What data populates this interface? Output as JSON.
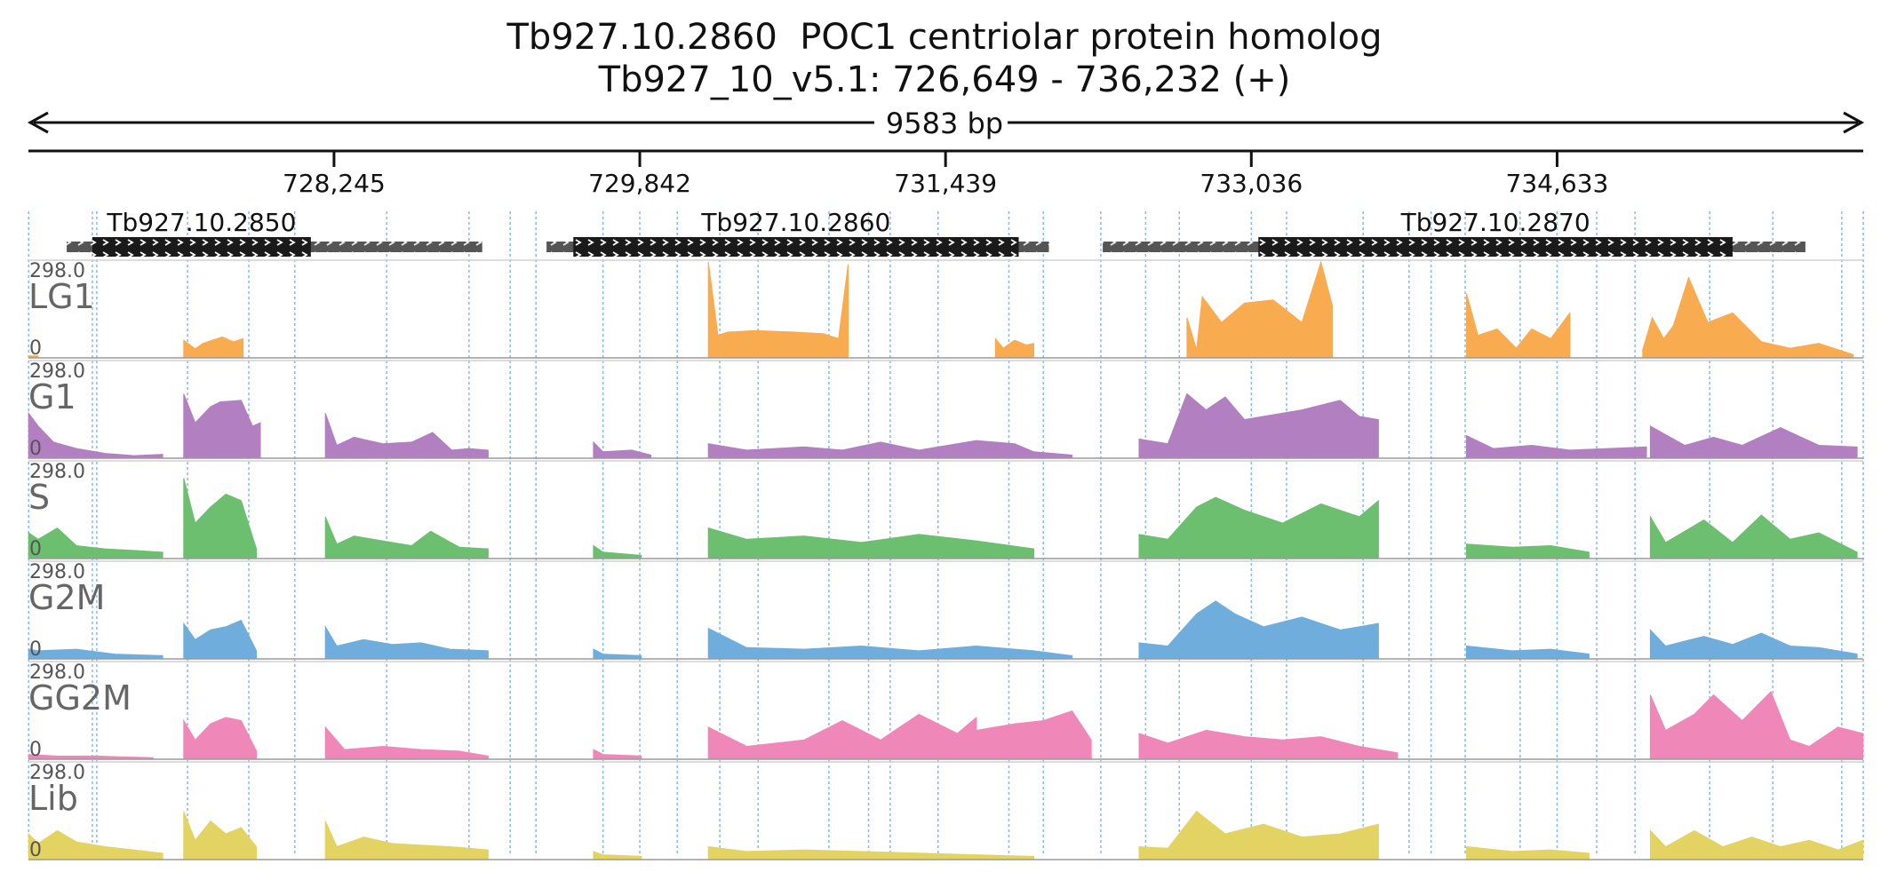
{
  "chart_data": {
    "type": "area",
    "title": "Tb927.10.2860  POC1 centriolar protein homolog",
    "subtitle": "Tb927_10_v5.1: 726,649 - 736,232 (+)",
    "span_label": "9583 bp",
    "region": {
      "start": 726649,
      "end": 736232
    },
    "ticks": [
      {
        "value": 728245,
        "label": "728,245"
      },
      {
        "value": 729842,
        "label": "729,842"
      },
      {
        "value": 731439,
        "label": "731,439"
      },
      {
        "value": 733036,
        "label": "733,036"
      },
      {
        "value": 734633,
        "label": "734,633"
      }
    ],
    "gridlines": [
      726650,
      726983,
      727006,
      727480,
      727800,
      728040,
      728520,
      728950,
      729165,
      729300,
      729650,
      729842,
      730038,
      730260,
      730460,
      730830,
      731037,
      731150,
      731400,
      731770,
      731950,
      732250,
      732484,
      732660,
      733036,
      733220,
      733620,
      733860,
      733975,
      734153,
      734440,
      734633,
      734840,
      735040,
      735430,
      735760,
      736120,
      736232
    ],
    "genes": [
      {
        "name": "Tb927.10.2850",
        "utr_start": 726849,
        "utr_end": 729019,
        "cds_start": 726983,
        "cds_end": 728124
      },
      {
        "name": "Tb927.10.2860",
        "utr_start": 729355,
        "utr_end": 731979,
        "cds_start": 729495,
        "cds_end": 731821
      },
      {
        "name": "Tb927.10.2870",
        "utr_start": 732260,
        "utr_end": 735930,
        "cds_start": 733073,
        "cds_end": 735550
      }
    ],
    "ylim": [
      0,
      298.0
    ],
    "ymax_label": "298.0",
    "ymin_label": "0",
    "series": [
      {
        "name": "LG1",
        "color": "#f9ab4f",
        "segments": [
          {
            "x": [
              726650,
              726700
            ],
            "y": [
              6,
              6
            ]
          },
          {
            "x": [
              727460,
              727520,
              727560,
              727660,
              727720,
              727770
            ],
            "y": [
              55,
              28,
              45,
              65,
              50,
              60
            ]
          },
          {
            "x": [
              730200,
              730250,
              730300,
              730450,
              730650,
              730800,
              730880,
              730930
            ],
            "y": [
              298,
              70,
              80,
              85,
              80,
              75,
              60,
              290
            ]
          },
          {
            "x": [
              731700,
              731740,
              731800,
              731860,
              731900
            ],
            "y": [
              60,
              30,
              55,
              40,
              45
            ]
          },
          {
            "x": [
              732700,
              732750,
              732780,
              732880,
              733000,
              733150,
              733300,
              733400,
              733460
            ],
            "y": [
              125,
              25,
              190,
              110,
              170,
              180,
              110,
              298,
              160
            ]
          },
          {
            "x": [
              734160,
              734220,
              734320,
              734420,
              734500,
              734600,
              734700
            ],
            "y": [
              200,
              70,
              90,
              30,
              90,
              60,
              140
            ]
          },
          {
            "x": [
              735080,
              735130,
              735190,
              735240,
              735320,
              735420,
              735550,
              735700,
              735850,
              736000,
              736180
            ],
            "y": [
              25,
              125,
              60,
              100,
              250,
              110,
              140,
              50,
              30,
              45,
              10
            ]
          }
        ]
      },
      {
        "name": "G1",
        "color": "#b27fc0",
        "segments": [
          {
            "x": [
              726650,
              726700,
              726780,
              726900,
              727050,
              727200,
              727350
            ],
            "y": [
              140,
              100,
              50,
              30,
              15,
              8,
              12
            ]
          },
          {
            "x": [
              727460,
              727520,
              727600,
              727650,
              727760,
              727820,
              727860
            ],
            "y": [
              200,
              110,
              160,
              175,
              180,
              100,
              110
            ]
          },
          {
            "x": [
              728200,
              728260,
              728350,
              728500,
              728650,
              728760,
              728860,
              728950,
              729050
            ],
            "y": [
              140,
              40,
              65,
              45,
              50,
              80,
              25,
              30,
              25
            ]
          },
          {
            "x": [
              729600,
              729650,
              729800,
              729900
            ],
            "y": [
              50,
              20,
              25,
              10
            ]
          },
          {
            "x": [
              730200,
              730400,
              730700,
              730900,
              731100,
              731300,
              731600,
              731800,
              731900,
              732100
            ],
            "y": [
              45,
              25,
              35,
              25,
              50,
              25,
              55,
              45,
              20,
              10
            ]
          },
          {
            "x": [
              732450,
              732600,
              732700,
              732800,
              732900,
              733000,
              733300,
              733500,
              733600,
              733700
            ],
            "y": [
              60,
              45,
              200,
              150,
              190,
              120,
              150,
              180,
              130,
              120
            ]
          },
          {
            "x": [
              734160,
              734300,
              734500,
              734700,
              734900,
              735100
            ],
            "y": [
              70,
              30,
              40,
              25,
              30,
              35
            ]
          },
          {
            "x": [
              735120,
              735300,
              735450,
              735600,
              735800,
              736000,
              736200
            ],
            "y": [
              100,
              40,
              65,
              40,
              95,
              40,
              35
            ]
          }
        ]
      },
      {
        "name": "S",
        "color": "#6cbf6e",
        "segments": [
          {
            "x": [
              726650,
              726700,
              726800,
              726900,
              727050,
              727200,
              727350
            ],
            "y": [
              80,
              60,
              95,
              40,
              30,
              25,
              20
            ]
          },
          {
            "x": [
              727460,
              727520,
              727600,
              727680,
              727760,
              727840
            ],
            "y": [
              250,
              110,
              160,
              200,
              180,
              30
            ]
          },
          {
            "x": [
              728200,
              728260,
              728350,
              728500,
              728650,
              728750,
              728900,
              729050
            ],
            "y": [
              130,
              45,
              70,
              55,
              40,
              85,
              35,
              30
            ]
          },
          {
            "x": [
              729600,
              729650,
              729850
            ],
            "y": [
              40,
              20,
              10
            ]
          },
          {
            "x": [
              730200,
              730400,
              730700,
              731000,
              731300,
              731600,
              731900
            ],
            "y": [
              95,
              60,
              70,
              50,
              75,
              55,
              30
            ]
          },
          {
            "x": [
              732450,
              732600,
              732750,
              732850,
              733000,
              733200,
              733400,
              733600,
              733700
            ],
            "y": [
              75,
              60,
              160,
              190,
              150,
              110,
              170,
              130,
              180
            ]
          },
          {
            "x": [
              734160,
              734400,
              734600,
              734800
            ],
            "y": [
              45,
              35,
              40,
              20
            ]
          },
          {
            "x": [
              735120,
              735200,
              735400,
              735550,
              735700,
              735850,
              736000,
              736200
            ],
            "y": [
              130,
              50,
              120,
              50,
              135,
              60,
              80,
              20
            ]
          }
        ]
      },
      {
        "name": "G2M",
        "color": "#6faedc",
        "segments": [
          {
            "x": [
              726650,
              726700,
              726900,
              727100,
              727350
            ],
            "y": [
              30,
              25,
              30,
              15,
              10
            ]
          },
          {
            "x": [
              727460,
              727520,
              727600,
              727680,
              727760,
              727840
            ],
            "y": [
              110,
              60,
              90,
              100,
              120,
              25
            ]
          },
          {
            "x": [
              728200,
              728260,
              728400,
              728550,
              728700,
              728850,
              729050
            ],
            "y": [
              100,
              40,
              60,
              45,
              50,
              30,
              25
            ]
          },
          {
            "x": [
              729600,
              729650,
              729850
            ],
            "y": [
              30,
              15,
              10
            ]
          },
          {
            "x": [
              730200,
              730400,
              730700,
              731000,
              731300,
              731600,
              731900,
              732100
            ],
            "y": [
              95,
              35,
              30,
              40,
              25,
              40,
              25,
              10
            ]
          },
          {
            "x": [
              732450,
              732600,
              732750,
              732850,
              732950,
              733100,
              733300,
              733500,
              733700
            ],
            "y": [
              50,
              40,
              140,
              180,
              140,
              100,
              130,
              90,
              110
            ]
          },
          {
            "x": [
              734160,
              734400,
              734600,
              734800
            ],
            "y": [
              40,
              25,
              30,
              15
            ]
          },
          {
            "x": [
              735120,
              735200,
              735400,
              735550,
              735700,
              735850,
              736000,
              736200
            ],
            "y": [
              90,
              40,
              70,
              45,
              80,
              40,
              35,
              15
            ]
          }
        ]
      },
      {
        "name": "GG2M",
        "color": "#f087b9",
        "segments": [
          {
            "x": [
              726650,
              726800,
              727000,
              727300
            ],
            "y": [
              15,
              10,
              10,
              5
            ]
          },
          {
            "x": [
              727460,
              727520,
              727600,
              727680,
              727760,
              727840
            ],
            "y": [
              120,
              60,
              110,
              130,
              120,
              25
            ]
          },
          {
            "x": [
              728200,
              728300,
              728500,
              728700,
              728900,
              729050
            ],
            "y": [
              100,
              30,
              40,
              30,
              25,
              10
            ]
          },
          {
            "x": [
              729600,
              729650,
              729850
            ],
            "y": [
              30,
              15,
              10
            ]
          },
          {
            "x": [
              730200,
              730400,
              730700,
              730900,
              731100,
              731300,
              731500,
              731600
            ],
            "y": [
              100,
              40,
              60,
              120,
              60,
              140,
              80,
              130
            ]
          },
          {
            "x": [
              731600,
              731800,
              731950,
              732100,
              732200
            ],
            "y": [
              90,
              110,
              120,
              150,
              60
            ]
          },
          {
            "x": [
              732450,
              732600,
              732800,
              733000,
              733200,
              733400,
              733600,
              733800
            ],
            "y": [
              80,
              50,
              90,
              70,
              60,
              70,
              40,
              20
            ]
          },
          {
            "x": [
              735120,
              735200,
              735350,
              735450,
              735600,
              735750,
              735850,
              735950,
              736100,
              736230
            ],
            "y": [
              200,
              90,
              140,
              200,
              120,
              210,
              60,
              40,
              100,
              80
            ]
          }
        ]
      },
      {
        "name": "Lib",
        "color": "#e3d363",
        "segments": [
          {
            "x": [
              726650,
              726700,
              726800,
              726900,
              727050,
              727200,
              727350
            ],
            "y": [
              80,
              50,
              90,
              55,
              40,
              30,
              20
            ]
          },
          {
            "x": [
              727460,
              727520,
              727600,
              727680,
              727760,
              727840
            ],
            "y": [
              150,
              60,
              120,
              80,
              100,
              40
            ]
          },
          {
            "x": [
              728200,
              728260,
              728400,
              728550,
              728700,
              728850,
              729050
            ],
            "y": [
              120,
              40,
              70,
              50,
              45,
              40,
              30
            ]
          },
          {
            "x": [
              729600,
              729650,
              729850
            ],
            "y": [
              25,
              15,
              10
            ]
          },
          {
            "x": [
              730200,
              730400,
              730700,
              731000,
              731300,
              731600,
              731900
            ],
            "y": [
              40,
              25,
              30,
              25,
              20,
              15,
              10
            ]
          },
          {
            "x": [
              732450,
              732600,
              732750,
              732900,
              733100,
              733300,
              733500,
              733700
            ],
            "y": [
              40,
              35,
              150,
              80,
              110,
              70,
              80,
              110
            ]
          },
          {
            "x": [
              734160,
              734400,
              734600,
              734800
            ],
            "y": [
              40,
              25,
              30,
              20
            ]
          },
          {
            "x": [
              735120,
              735200,
              735350,
              735500,
              735650,
              735800,
              735950,
              736100,
              736230
            ],
            "y": [
              90,
              40,
              90,
              40,
              70,
              40,
              60,
              30,
              60
            ]
          }
        ]
      }
    ]
  }
}
